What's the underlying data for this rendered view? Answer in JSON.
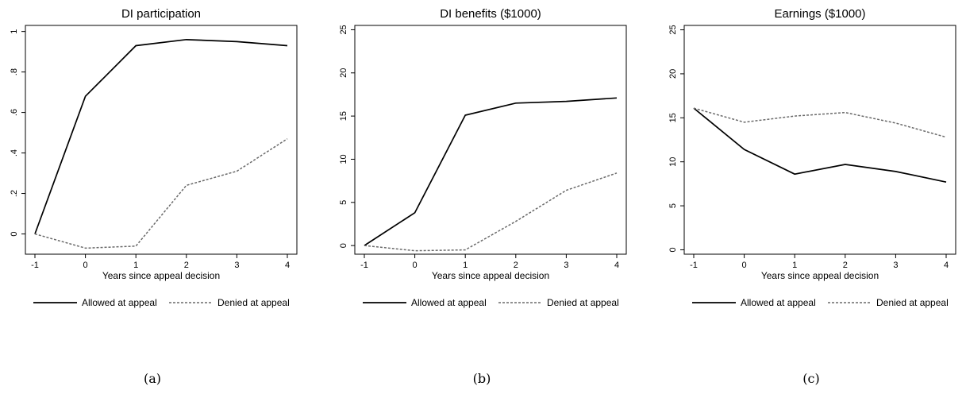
{
  "chart_data": [
    {
      "type": "line",
      "title": "DI participation",
      "xlabel": "Years since appeal decision",
      "ylabel": "",
      "x": [
        -1,
        0,
        1,
        2,
        3,
        4
      ],
      "xticks": [
        "-1",
        "0",
        "1",
        "2",
        "3",
        "4"
      ],
      "xlim": [
        -1,
        4
      ],
      "ylim": [
        -0.1,
        1.03
      ],
      "yticks": [
        0,
        0.2,
        0.4,
        0.6,
        0.8,
        1
      ],
      "yticklabels": [
        "0",
        ".2",
        ".4",
        ".6",
        ".8",
        "1"
      ],
      "series": [
        {
          "name": "Allowed at appeal",
          "values": [
            0,
            0.68,
            0.93,
            0.96,
            0.95,
            0.93
          ],
          "style": "solid"
        },
        {
          "name": "Denied at appeal",
          "values": [
            0,
            -0.07,
            -0.06,
            0.24,
            0.31,
            0.47
          ],
          "style": "dashed"
        }
      ],
      "legend_position": "bottom",
      "caption": "(a)"
    },
    {
      "type": "line",
      "title": "DI benefits ($1000)",
      "xlabel": "Years since appeal decision",
      "ylabel": "",
      "x": [
        -1,
        0,
        1,
        2,
        3,
        4
      ],
      "xticks": [
        "-1",
        "0",
        "1",
        "2",
        "3",
        "4"
      ],
      "xlim": [
        -1,
        4
      ],
      "ylim": [
        -1,
        25.5
      ],
      "yticks": [
        0,
        5,
        10,
        15,
        20,
        25
      ],
      "yticklabels": [
        "0",
        "5",
        "10",
        "15",
        "20",
        "25"
      ],
      "series": [
        {
          "name": "Allowed at appeal",
          "values": [
            0,
            3.8,
            15.1,
            16.5,
            16.7,
            17.1
          ],
          "style": "solid"
        },
        {
          "name": "Denied at appeal",
          "values": [
            0,
            -0.6,
            -0.5,
            2.8,
            6.4,
            8.4
          ],
          "style": "dashed"
        }
      ],
      "legend_position": "bottom",
      "caption": "(b)"
    },
    {
      "type": "line",
      "title": "Earnings ($1000)",
      "xlabel": "Years since appeal decision",
      "ylabel": "",
      "x": [
        -1,
        0,
        1,
        2,
        3,
        4
      ],
      "xticks": [
        "-1",
        "0",
        "1",
        "2",
        "3",
        "4"
      ],
      "xlim": [
        -1,
        4
      ],
      "ylim": [
        -0.5,
        25.5
      ],
      "yticks": [
        0,
        5,
        10,
        15,
        20,
        25
      ],
      "yticklabels": [
        "0",
        "5",
        "10",
        "15",
        "20",
        "25"
      ],
      "series": [
        {
          "name": "Allowed at appeal",
          "values": [
            16.1,
            11.4,
            8.6,
            9.7,
            8.9,
            7.7
          ],
          "style": "solid"
        },
        {
          "name": "Denied at appeal",
          "values": [
            16.1,
            14.5,
            15.2,
            15.6,
            14.4,
            12.8
          ],
          "style": "dashed"
        }
      ],
      "legend_position": "bottom",
      "caption": "(c)"
    }
  ]
}
